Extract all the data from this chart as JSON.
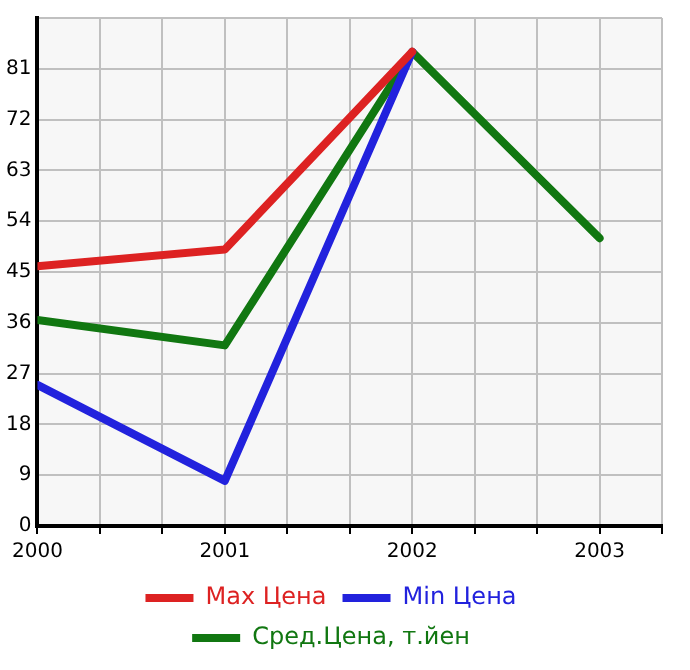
{
  "chart_data": {
    "type": "line",
    "x": [
      2000,
      2001,
      2002,
      2003
    ],
    "series": [
      {
        "name": "Max Цена",
        "color": "#dd2222",
        "values": [
          46,
          49,
          84,
          null
        ]
      },
      {
        "name": "Min Цена",
        "color": "#2222dd",
        "values": [
          25,
          8,
          84,
          null
        ]
      },
      {
        "name": "Сред.Цена, т.йен",
        "color": "#117711",
        "values": [
          36.5,
          32,
          84,
          51
        ]
      }
    ],
    "xlim": [
      2000,
      2003.333
    ],
    "xticks": [
      2000,
      {
        "value": 2000.333,
        "label": null
      },
      {
        "value": 2000.667,
        "label": null
      },
      2001,
      {
        "value": 2001.333,
        "label": null
      },
      {
        "value": 2001.667,
        "label": null
      },
      2002,
      {
        "value": 2002.333,
        "label": null
      },
      {
        "value": 2002.667,
        "label": null
      },
      2003,
      {
        "value": 2003.333,
        "label": null
      }
    ],
    "ylim": [
      0,
      90
    ],
    "yticks": [
      0,
      9,
      18,
      27,
      36,
      45,
      54,
      63,
      72,
      81,
      {
        "value": 90,
        "label": null
      }
    ],
    "grid": true,
    "legend": "bottom",
    "marker": "none",
    "line_style": "solid"
  }
}
